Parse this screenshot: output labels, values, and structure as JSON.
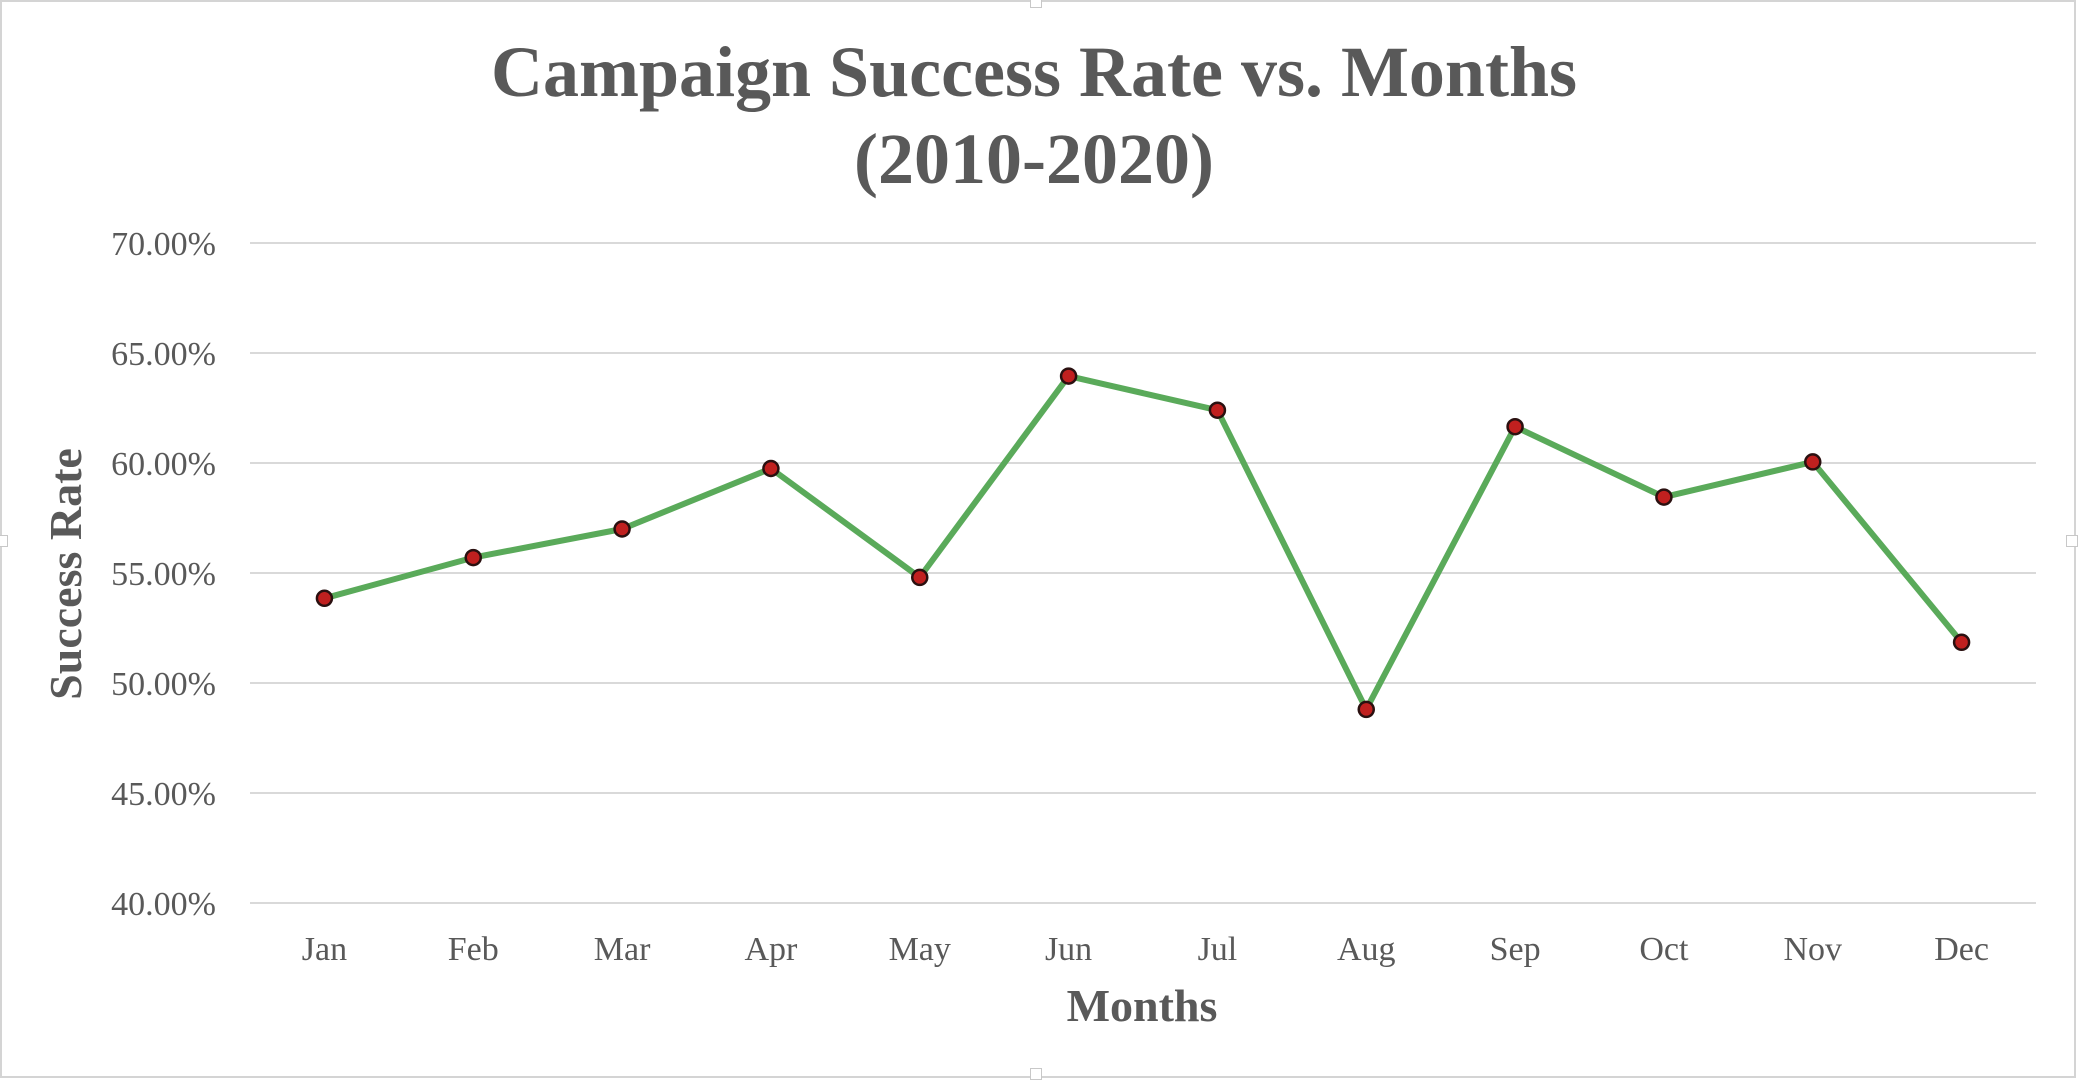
{
  "chart_data": {
    "type": "line",
    "title_line1": "Campaign Success Rate vs. Months",
    "title_line2": "(2010-2020)",
    "xlabel": "Months",
    "ylabel": "Success Rate",
    "categories": [
      "Jan",
      "Feb",
      "Mar",
      "Apr",
      "May",
      "Jun",
      "Jul",
      "Aug",
      "Sep",
      "Oct",
      "Nov",
      "Dec"
    ],
    "values": [
      53.85,
      55.7,
      57.0,
      59.75,
      54.8,
      63.95,
      62.4,
      48.8,
      61.65,
      58.45,
      60.05,
      51.85
    ],
    "ylim": [
      40,
      70
    ],
    "yticks": [
      70,
      65,
      60,
      55,
      50,
      45,
      40
    ],
    "ytick_labels": [
      "70.00%",
      "65.00%",
      "60.00%",
      "55.00%",
      "50.00%",
      "45.00%",
      "40.00%"
    ],
    "grid": true,
    "legend": "none",
    "colors": {
      "line": "#5aaa5a",
      "marker_fill": "#c0201f",
      "marker_stroke": "#2a1010",
      "grid": "#d9d9d9",
      "text": "#595959"
    }
  }
}
